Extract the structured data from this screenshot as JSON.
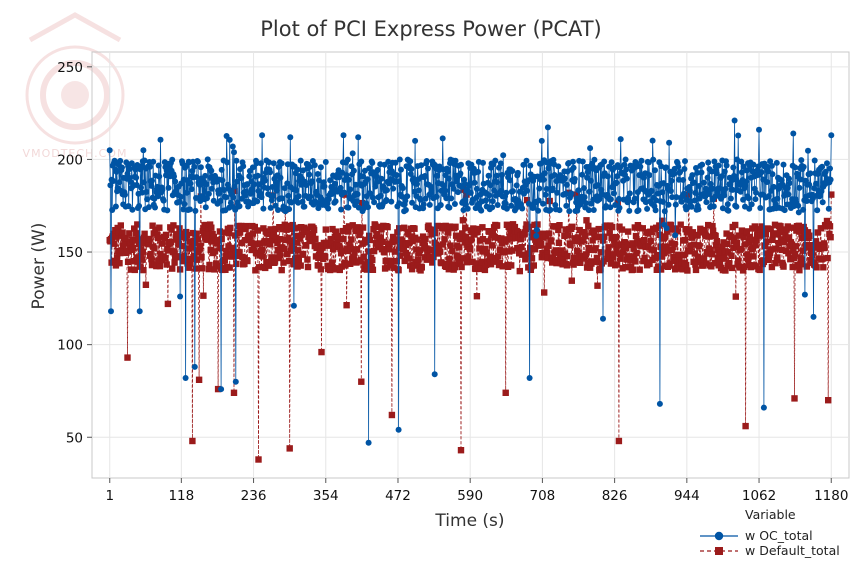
{
  "watermark": {
    "text": "VMODTECH.COM"
  },
  "chart_data": {
    "type": "line",
    "title": "Plot of PCI Express Power (PCAT)",
    "xlabel": "Time (s)",
    "ylabel": "Power (W)",
    "xlim": [
      -28,
      1209
    ],
    "ylim": [
      28,
      258
    ],
    "xticks": [
      1,
      118,
      236,
      354,
      472,
      590,
      708,
      826,
      944,
      1062,
      1180
    ],
    "yticks": [
      50,
      100,
      150,
      200,
      250
    ],
    "grid": true,
    "n_points": 1180,
    "legend": {
      "title": "Variable",
      "position": "bottom-right",
      "entries": [
        "w OC_total",
        "w Default_total"
      ]
    },
    "series": [
      {
        "name": "w OC_total",
        "color": "#0054a4",
        "marker": "circle",
        "line_style": "solid",
        "baseline_range": [
          172,
          200
        ],
        "typical_mean": 186,
        "peaks": [
          {
            "x": 1,
            "y": 205
          },
          {
            "x": 56,
            "y": 205
          },
          {
            "x": 202,
            "y": 207
          },
          {
            "x": 250,
            "y": 213
          },
          {
            "x": 296,
            "y": 212
          },
          {
            "x": 383,
            "y": 213
          },
          {
            "x": 407,
            "y": 212
          },
          {
            "x": 500,
            "y": 210
          },
          {
            "x": 707,
            "y": 210
          },
          {
            "x": 836,
            "y": 211
          },
          {
            "x": 915,
            "y": 209
          },
          {
            "x": 1022,
            "y": 221
          },
          {
            "x": 1062,
            "y": 216
          },
          {
            "x": 1118,
            "y": 214
          },
          {
            "x": 1185,
            "y": 213
          }
        ],
        "dips": [
          {
            "x": 3,
            "y": 118
          },
          {
            "x": 50,
            "y": 118
          },
          {
            "x": 116,
            "y": 126
          },
          {
            "x": 125,
            "y": 82
          },
          {
            "x": 140,
            "y": 88
          },
          {
            "x": 183,
            "y": 76
          },
          {
            "x": 207,
            "y": 80
          },
          {
            "x": 302,
            "y": 121
          },
          {
            "x": 424,
            "y": 47
          },
          {
            "x": 473,
            "y": 54
          },
          {
            "x": 532,
            "y": 84
          },
          {
            "x": 687,
            "y": 82
          },
          {
            "x": 807,
            "y": 114
          },
          {
            "x": 900,
            "y": 68
          },
          {
            "x": 1070,
            "y": 66
          },
          {
            "x": 1137,
            "y": 127
          },
          {
            "x": 1151,
            "y": 115
          }
        ]
      },
      {
        "name": "w Default_total",
        "color": "#9b1b1b",
        "marker": "square",
        "line_style": "dashed",
        "baseline_range": [
          140,
          165
        ],
        "typical_mean": 153,
        "peaks": [
          {
            "x": 150,
            "y": 180
          },
          {
            "x": 205,
            "y": 183
          },
          {
            "x": 384,
            "y": 181
          },
          {
            "x": 584,
            "y": 181
          },
          {
            "x": 751,
            "y": 182
          },
          {
            "x": 947,
            "y": 181
          },
          {
            "x": 1180,
            "y": 181
          }
        ],
        "dips": [
          {
            "x": 30,
            "y": 93
          },
          {
            "x": 96,
            "y": 122
          },
          {
            "x": 136,
            "y": 48
          },
          {
            "x": 147,
            "y": 81
          },
          {
            "x": 178,
            "y": 76
          },
          {
            "x": 204,
            "y": 74
          },
          {
            "x": 244,
            "y": 38
          },
          {
            "x": 295,
            "y": 44
          },
          {
            "x": 347,
            "y": 96
          },
          {
            "x": 412,
            "y": 80
          },
          {
            "x": 462,
            "y": 62
          },
          {
            "x": 575,
            "y": 43
          },
          {
            "x": 648,
            "y": 74
          },
          {
            "x": 833,
            "y": 48
          },
          {
            "x": 1040,
            "y": 56
          },
          {
            "x": 1120,
            "y": 71
          },
          {
            "x": 1175,
            "y": 70
          }
        ]
      }
    ]
  }
}
